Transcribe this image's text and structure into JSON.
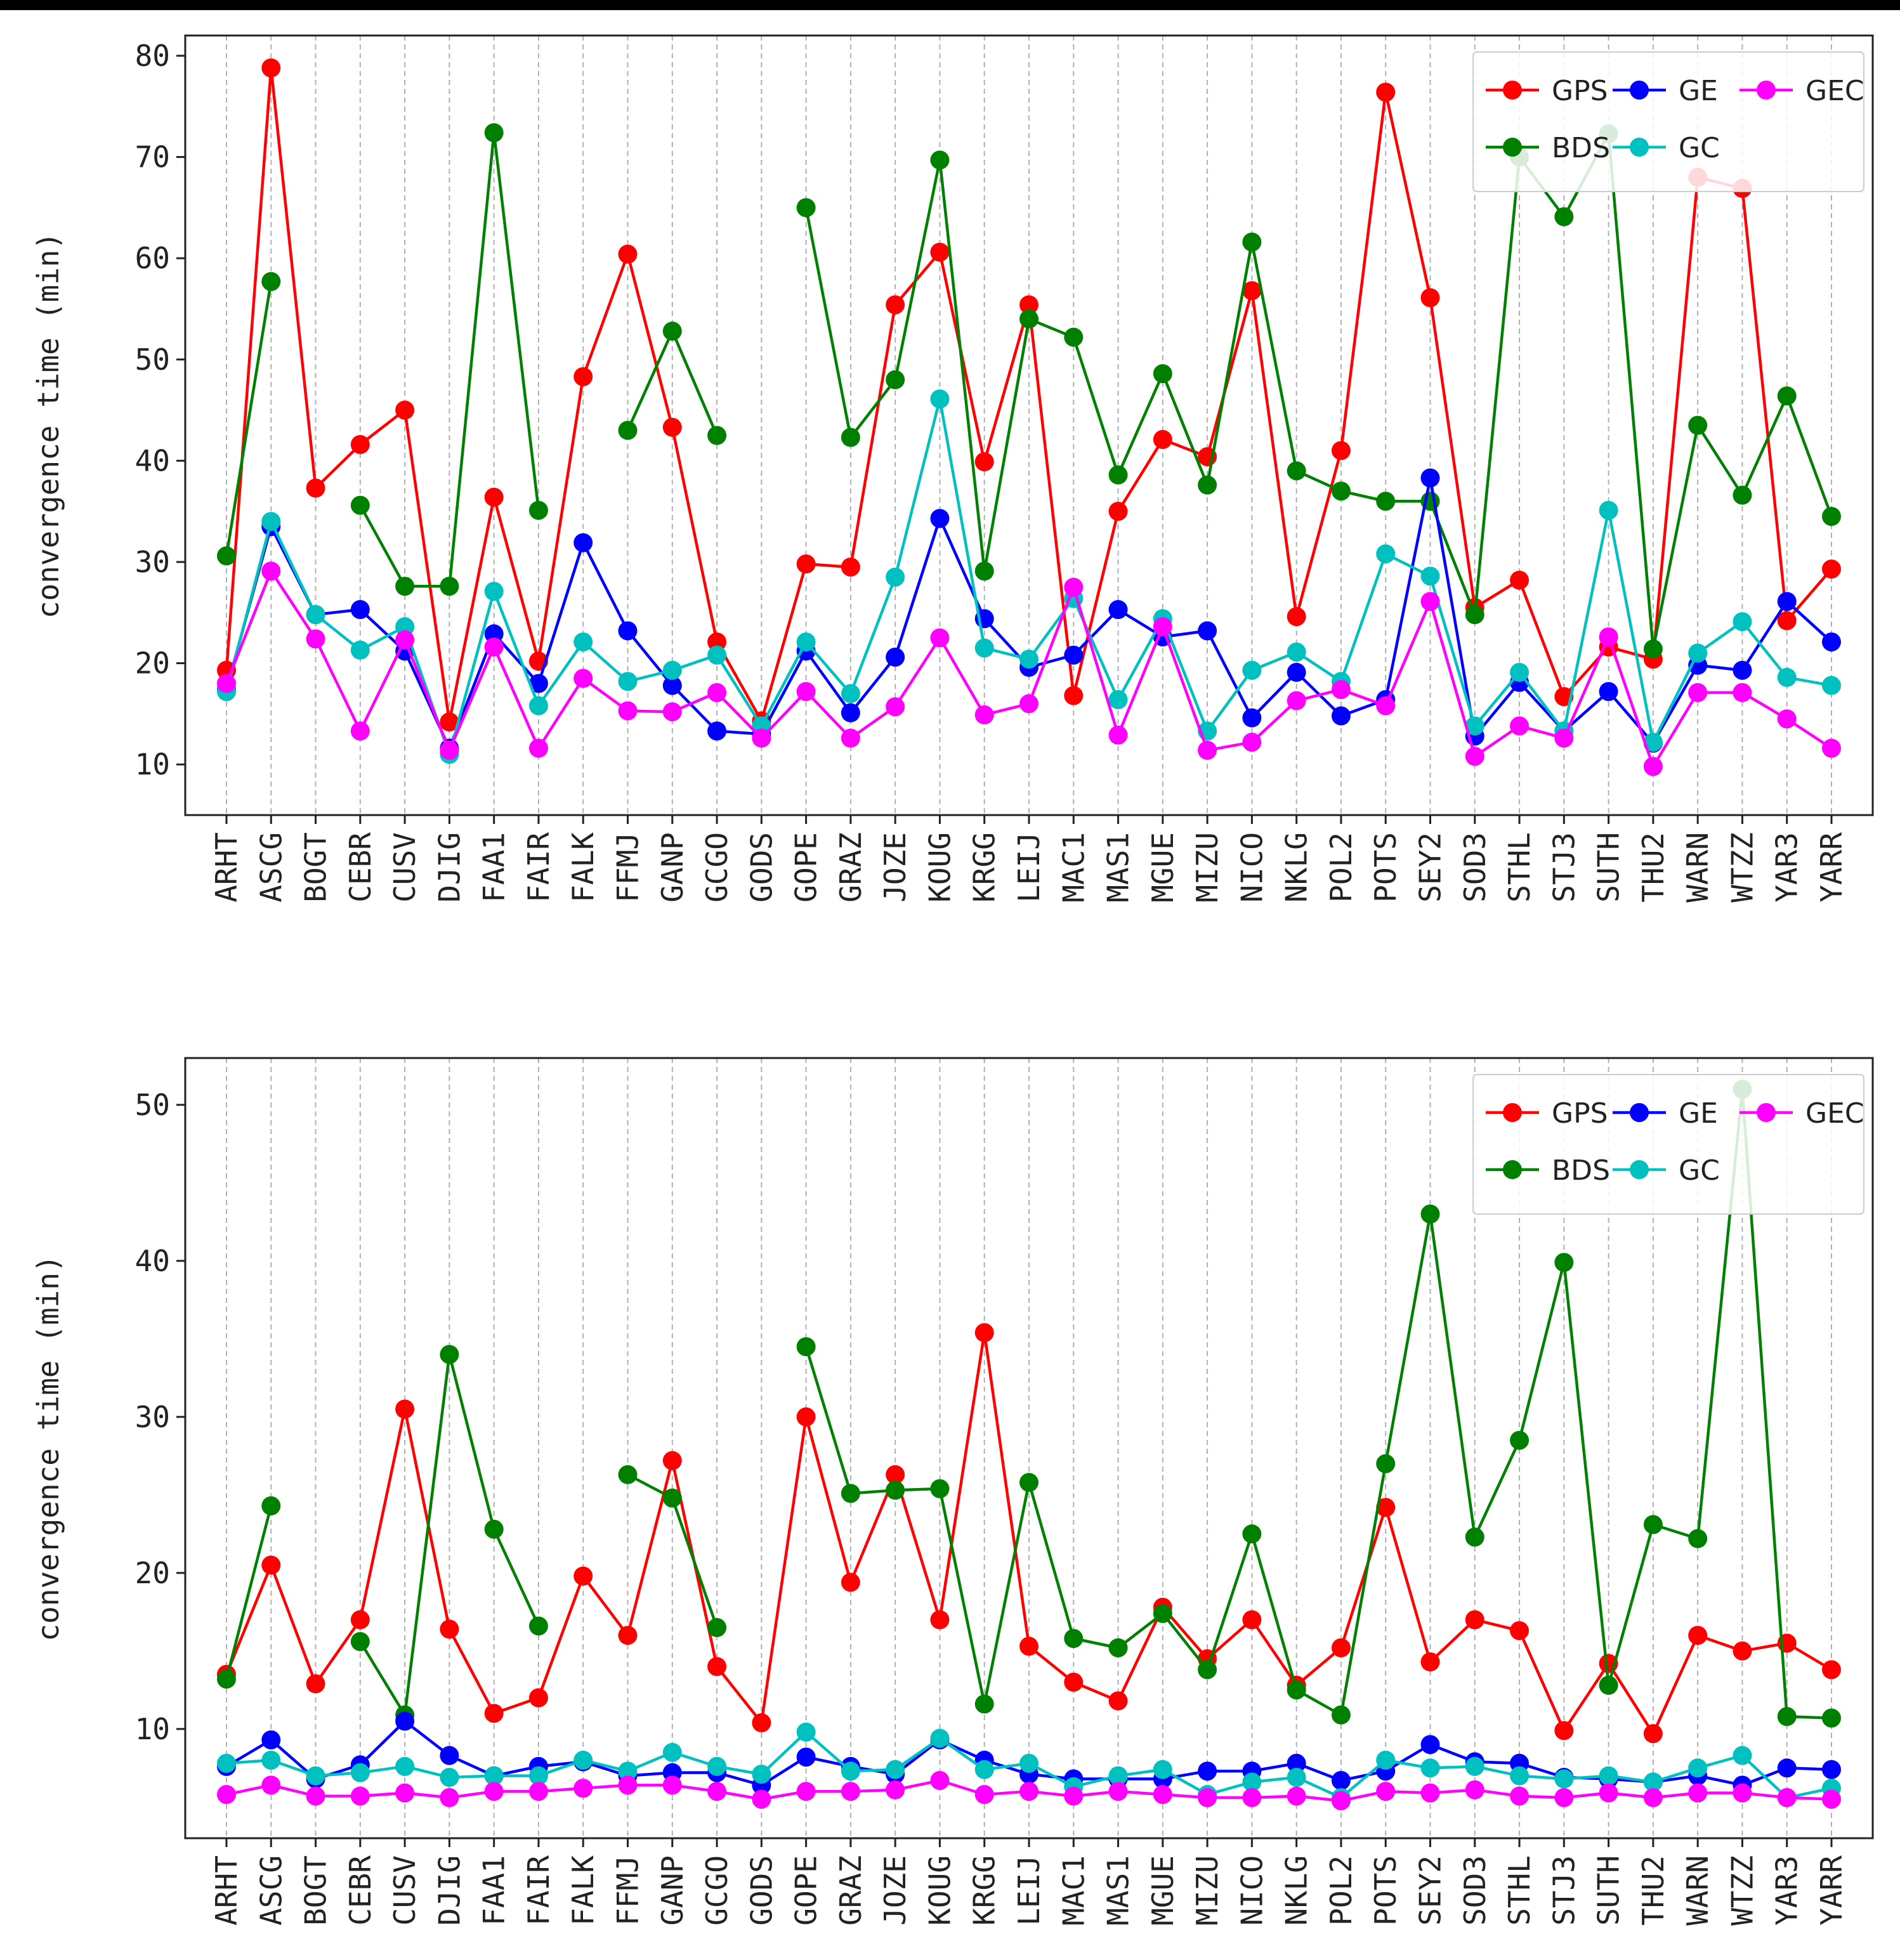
{
  "chart_data": [
    {
      "type": "line",
      "title": "",
      "xlabel": "",
      "ylabel": "convergence time (min)",
      "ylim": [
        5,
        82
      ],
      "yticks": [
        10,
        20,
        30,
        40,
        50,
        60,
        70,
        80
      ],
      "grid": "vertical dashed",
      "legend_position": "top-right",
      "categories": [
        "ARHT",
        "ASCG",
        "BOGT",
        "CEBR",
        "CUSV",
        "DJIG",
        "FAA1",
        "FAIR",
        "FALK",
        "FFMJ",
        "GANP",
        "GCGO",
        "GODS",
        "GOPE",
        "GRAZ",
        "JOZE",
        "KOUG",
        "KRGG",
        "LEIJ",
        "MAC1",
        "MAS1",
        "MGUE",
        "MIZU",
        "NICO",
        "NKLG",
        "POL2",
        "POTS",
        "SEY2",
        "SOD3",
        "STHL",
        "STJ3",
        "SUTH",
        "THU2",
        "WARN",
        "WTZZ",
        "YAR3",
        "YARR"
      ],
      "series": [
        {
          "name": "GPS",
          "color": "#ff0000",
          "values": [
            19.3,
            78.8,
            37.3,
            41.6,
            45.0,
            14.2,
            36.4,
            20.2,
            48.3,
            60.4,
            43.3,
            22.1,
            14.3,
            29.8,
            29.5,
            55.4,
            60.6,
            39.9,
            55.4,
            16.8,
            35.0,
            42.1,
            40.4,
            56.8,
            24.6,
            41.0,
            76.4,
            56.1,
            25.5,
            28.2,
            16.7,
            21.6,
            20.4,
            68.0,
            66.9,
            24.2,
            29.3
          ]
        },
        {
          "name": "BDS",
          "color": "#008000",
          "values": [
            30.6,
            57.7,
            null,
            35.6,
            27.6,
            27.6,
            72.4,
            35.1,
            null,
            43.0,
            52.8,
            42.5,
            null,
            65.0,
            42.3,
            48.0,
            69.7,
            29.1,
            54.0,
            52.2,
            38.6,
            48.6,
            37.6,
            61.6,
            39.0,
            37.0,
            36.0,
            36.0,
            24.8,
            70.0,
            64.1,
            72.3,
            21.4,
            43.5,
            36.6,
            46.4,
            34.5
          ]
        },
        {
          "name": "GE",
          "color": "#0000ff",
          "values": [
            17.4,
            33.5,
            24.8,
            25.3,
            21.2,
            11.6,
            22.9,
            18.0,
            31.9,
            23.2,
            17.8,
            13.3,
            13.0,
            21.2,
            15.1,
            20.6,
            34.3,
            24.4,
            19.6,
            20.8,
            25.3,
            22.6,
            23.2,
            14.6,
            19.1,
            14.8,
            16.4,
            38.3,
            12.8,
            18.1,
            13.3,
            17.2,
            12.1,
            19.8,
            19.3,
            26.1,
            22.1
          ]
        },
        {
          "name": "GC",
          "color": "#00c0c0",
          "values": [
            17.2,
            34.0,
            24.8,
            21.3,
            23.6,
            11.0,
            27.1,
            15.8,
            22.1,
            18.2,
            19.3,
            20.8,
            13.8,
            22.1,
            17.0,
            28.5,
            46.1,
            21.5,
            20.4,
            26.4,
            16.4,
            24.4,
            13.3,
            19.3,
            21.1,
            18.2,
            30.8,
            28.6,
            13.8,
            19.1,
            13.3,
            35.1,
            12.2,
            21.0,
            24.1,
            18.6,
            17.8
          ]
        },
        {
          "name": "GEC",
          "color": "#ff00ff",
          "values": [
            18.0,
            29.1,
            22.4,
            13.3,
            22.3,
            11.4,
            21.6,
            11.6,
            18.5,
            15.3,
            15.2,
            17.1,
            12.6,
            17.2,
            12.6,
            15.7,
            22.5,
            14.9,
            16.0,
            27.5,
            12.9,
            23.6,
            11.4,
            12.2,
            16.3,
            17.4,
            15.8,
            26.1,
            10.8,
            13.8,
            12.6,
            22.6,
            9.8,
            17.1,
            17.1,
            14.5,
            11.6
          ]
        }
      ]
    },
    {
      "type": "line",
      "title": "",
      "xlabel": "",
      "ylabel": "convergence time (min)",
      "ylim": [
        3,
        53
      ],
      "yticks": [
        10,
        20,
        30,
        40,
        50
      ],
      "grid": "vertical dashed",
      "legend_position": "top-right",
      "categories": [
        "ARHT",
        "ASCG",
        "BOGT",
        "CEBR",
        "CUSV",
        "DJIG",
        "FAA1",
        "FAIR",
        "FALK",
        "FFMJ",
        "GANP",
        "GCGO",
        "GODS",
        "GOPE",
        "GRAZ",
        "JOZE",
        "KOUG",
        "KRGG",
        "LEIJ",
        "MAC1",
        "MAS1",
        "MGUE",
        "MIZU",
        "NICO",
        "NKLG",
        "POL2",
        "POTS",
        "SEY2",
        "SOD3",
        "STHL",
        "STJ3",
        "SUTH",
        "THU2",
        "WARN",
        "WTZZ",
        "YAR3",
        "YARR"
      ],
      "series": [
        {
          "name": "GPS",
          "color": "#ff0000",
          "values": [
            13.5,
            20.5,
            12.9,
            17.0,
            30.5,
            16.4,
            11.0,
            12.0,
            19.8,
            16.0,
            27.2,
            14.0,
            10.4,
            30.0,
            19.4,
            26.3,
            17.0,
            35.4,
            15.3,
            13.0,
            11.8,
            17.8,
            14.5,
            17.0,
            12.8,
            15.2,
            24.2,
            14.3,
            17.0,
            16.3,
            9.9,
            14.2,
            9.7,
            16.0,
            15.0,
            15.5,
            13.8
          ]
        },
        {
          "name": "BDS",
          "color": "#008000",
          "values": [
            13.2,
            24.3,
            null,
            15.6,
            10.9,
            34.0,
            22.8,
            16.6,
            null,
            26.3,
            24.8,
            16.5,
            null,
            34.5,
            25.1,
            25.3,
            25.4,
            11.6,
            25.8,
            15.8,
            15.2,
            17.4,
            13.8,
            22.5,
            12.5,
            10.9,
            27.0,
            43.0,
            22.3,
            28.5,
            39.9,
            12.8,
            23.1,
            22.2,
            51.0,
            10.8,
            10.7
          ]
        },
        {
          "name": "GE",
          "color": "#0000ff",
          "values": [
            7.6,
            9.3,
            6.8,
            7.7,
            10.5,
            8.3,
            7.0,
            7.6,
            7.9,
            7.0,
            7.2,
            7.2,
            6.4,
            8.2,
            7.6,
            7.1,
            9.3,
            8.0,
            7.1,
            6.8,
            6.8,
            6.8,
            7.3,
            7.3,
            7.8,
            6.7,
            7.3,
            9.0,
            7.9,
            7.8,
            6.9,
            6.8,
            6.6,
            7.0,
            6.4,
            7.5,
            7.4
          ]
        },
        {
          "name": "GC",
          "color": "#00c0c0",
          "values": [
            7.8,
            8.0,
            7.0,
            7.2,
            7.6,
            6.9,
            7.0,
            7.0,
            8.0,
            7.3,
            8.5,
            7.6,
            7.1,
            9.8,
            7.3,
            7.4,
            9.4,
            7.4,
            7.8,
            6.3,
            7.0,
            7.4,
            5.8,
            6.6,
            6.9,
            5.6,
            8.0,
            7.5,
            7.6,
            7.0,
            6.8,
            7.0,
            6.6,
            7.5,
            8.3,
            5.6,
            6.2
          ]
        },
        {
          "name": "GEC",
          "color": "#ff00ff",
          "values": [
            5.8,
            6.4,
            5.7,
            5.7,
            5.9,
            5.6,
            6.0,
            6.0,
            6.2,
            6.4,
            6.4,
            6.0,
            5.5,
            6.0,
            6.0,
            6.1,
            6.7,
            5.8,
            6.0,
            5.7,
            6.0,
            5.8,
            5.6,
            5.6,
            5.7,
            5.4,
            6.0,
            5.9,
            6.1,
            5.7,
            5.6,
            5.9,
            5.6,
            5.9,
            5.9,
            5.6,
            5.5
          ]
        }
      ]
    }
  ]
}
